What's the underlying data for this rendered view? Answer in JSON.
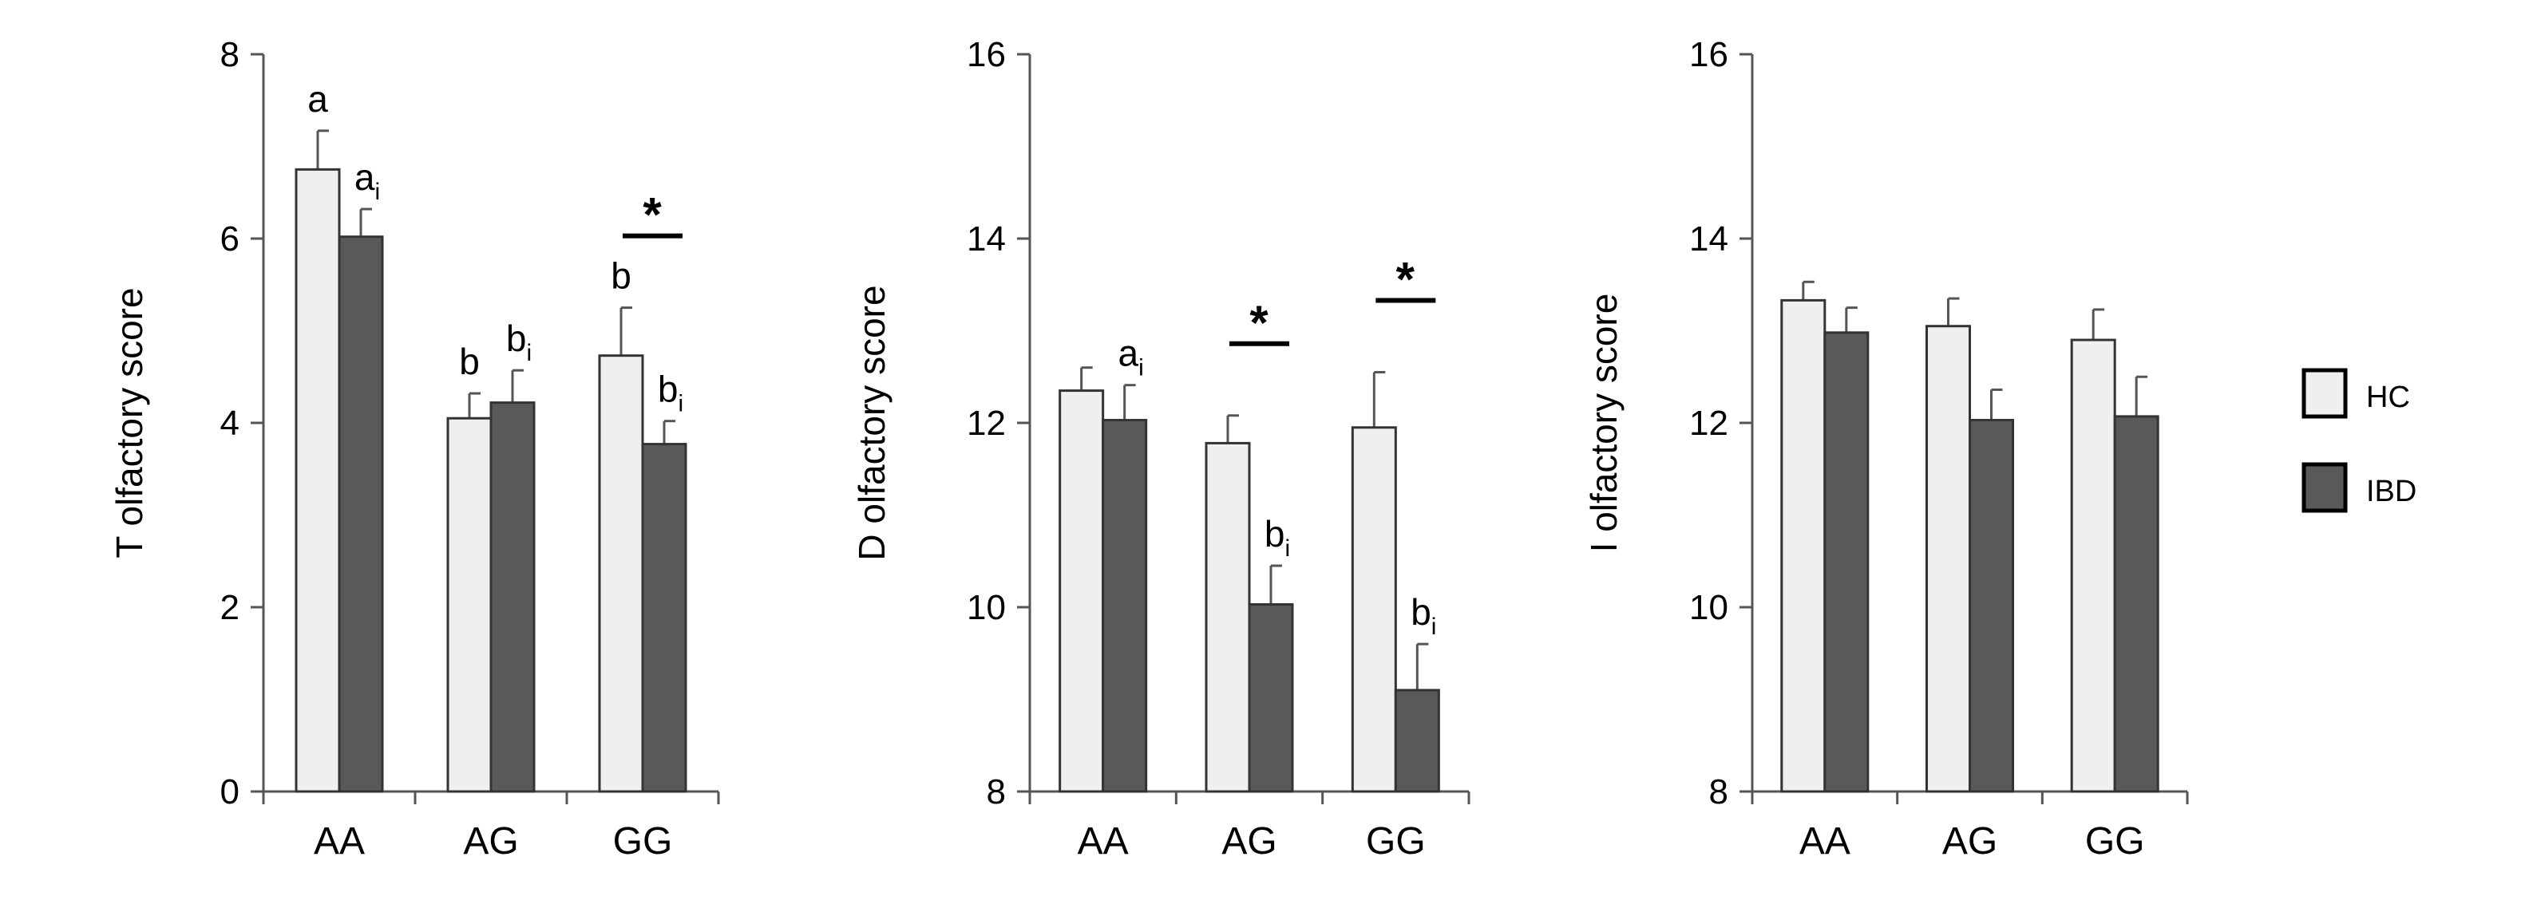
{
  "chart_data": [
    {
      "type": "bar",
      "categories": [
        "AA",
        "AG",
        "GG"
      ],
      "ylabel": "T olfactory score",
      "ylim": [
        0,
        8
      ],
      "yticks": [
        0,
        2,
        4,
        6,
        8
      ],
      "series": [
        {
          "name": "HC",
          "color": "#efefef",
          "values": [
            6.75,
            4.05,
            4.73
          ],
          "errors": [
            0.42,
            0.27,
            0.52
          ]
        },
        {
          "name": "IBD",
          "color": "#595959",
          "values": [
            6.02,
            4.22,
            3.77
          ],
          "errors": [
            0.3,
            0.35,
            0.25
          ]
        }
      ],
      "annotations": [
        {
          "category": 0,
          "series": 0,
          "letter": "a",
          "sub": ""
        },
        {
          "category": 0,
          "series": 1,
          "letter": "a",
          "sub": "i"
        },
        {
          "category": 1,
          "series": 0,
          "letter": "b",
          "sub": ""
        },
        {
          "category": 1,
          "series": 1,
          "letter": "b",
          "sub": "i"
        },
        {
          "category": 2,
          "series": 0,
          "letter": "b",
          "sub": ""
        },
        {
          "category": 2,
          "series": 1,
          "letter": "b",
          "sub": "i"
        }
      ],
      "significance": [
        {
          "category": 2,
          "label": "*"
        }
      ]
    },
    {
      "type": "bar",
      "categories": [
        "AA",
        "AG",
        "GG"
      ],
      "ylabel": "D olfactory score",
      "ylim": [
        8,
        16
      ],
      "yticks": [
        8,
        10,
        12,
        14,
        16
      ],
      "series": [
        {
          "name": "HC",
          "color": "#efefef",
          "values": [
            12.35,
            11.78,
            11.95
          ],
          "errors": [
            0.25,
            0.3,
            0.6
          ]
        },
        {
          "name": "IBD",
          "color": "#595959",
          "values": [
            12.03,
            10.03,
            9.1
          ],
          "errors": [
            0.38,
            0.42,
            0.5
          ]
        }
      ],
      "annotations": [
        {
          "category": 0,
          "series": 1,
          "letter": "a",
          "sub": "i"
        },
        {
          "category": 1,
          "series": 1,
          "letter": "b",
          "sub": "i"
        },
        {
          "category": 2,
          "series": 1,
          "letter": "b",
          "sub": "i"
        }
      ],
      "significance": [
        {
          "category": 1,
          "label": "*"
        },
        {
          "category": 2,
          "label": "*"
        }
      ]
    },
    {
      "type": "bar",
      "categories": [
        "AA",
        "AG",
        "GG"
      ],
      "ylabel": "I olfactory score",
      "ylim": [
        8,
        16
      ],
      "yticks": [
        8,
        10,
        12,
        14,
        16
      ],
      "series": [
        {
          "name": "HC",
          "color": "#efefef",
          "values": [
            13.33,
            13.05,
            12.9
          ],
          "errors": [
            0.2,
            0.3,
            0.33
          ]
        },
        {
          "name": "IBD",
          "color": "#595959",
          "values": [
            12.98,
            12.03,
            12.07
          ],
          "errors": [
            0.27,
            0.33,
            0.43
          ]
        }
      ],
      "annotations": [],
      "significance": []
    }
  ],
  "legend": {
    "items": [
      {
        "label": "HC",
        "color": "#efefef"
      },
      {
        "label": "IBD",
        "color": "#595959"
      }
    ]
  }
}
